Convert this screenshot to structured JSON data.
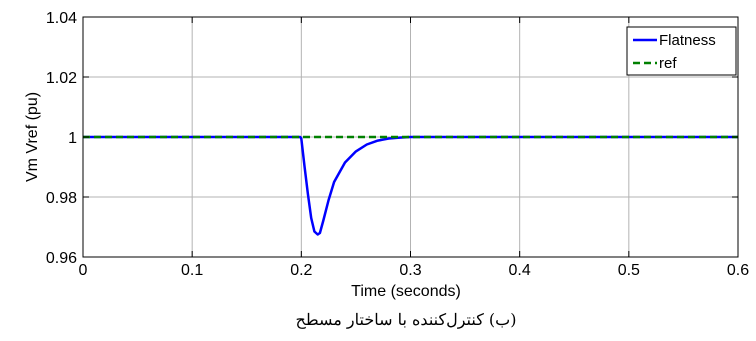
{
  "chart_data": {
    "type": "line",
    "xlabel": "Time (seconds)",
    "ylabel": "Vm Vref (pu)",
    "caption": "(ب) کنترل‌کننده با ساختار مسطح",
    "xlim": [
      0,
      0.6
    ],
    "ylim": [
      0.96,
      1.04
    ],
    "xticks": [
      0,
      0.1,
      0.2,
      0.3,
      0.4,
      0.5,
      0.6
    ],
    "xtick_labels": [
      "0",
      "0.1",
      "0.2",
      "0.3",
      "0.4",
      "0.5",
      "0.6"
    ],
    "yticks": [
      0.96,
      0.98,
      1.0,
      1.02,
      1.04
    ],
    "ytick_labels": [
      "0.96",
      "0.98",
      "1",
      "1.02",
      "1.04"
    ],
    "grid": true,
    "legend_position": "top-right",
    "series": [
      {
        "name": "Flatness",
        "color": "#0000ff",
        "style": "solid",
        "x": [
          0,
          0.1,
          0.199,
          0.2,
          0.203,
          0.206,
          0.209,
          0.212,
          0.215,
          0.217,
          0.22,
          0.225,
          0.23,
          0.24,
          0.25,
          0.26,
          0.27,
          0.28,
          0.29,
          0.3,
          0.31,
          0.35,
          0.4,
          0.5,
          0.6
        ],
        "y": [
          1.0,
          1.0,
          1.0,
          0.9995,
          0.99,
          0.981,
          0.973,
          0.9685,
          0.9675,
          0.968,
          0.972,
          0.979,
          0.985,
          0.9915,
          0.9952,
          0.9975,
          0.9988,
          0.9995,
          0.9998,
          1.0,
          1.0,
          1.0,
          1.0,
          1.0,
          1.0
        ]
      },
      {
        "name": "ref",
        "color": "#008000",
        "style": "dashed",
        "x": [
          0,
          0.6
        ],
        "y": [
          1.0,
          1.0
        ]
      }
    ]
  }
}
